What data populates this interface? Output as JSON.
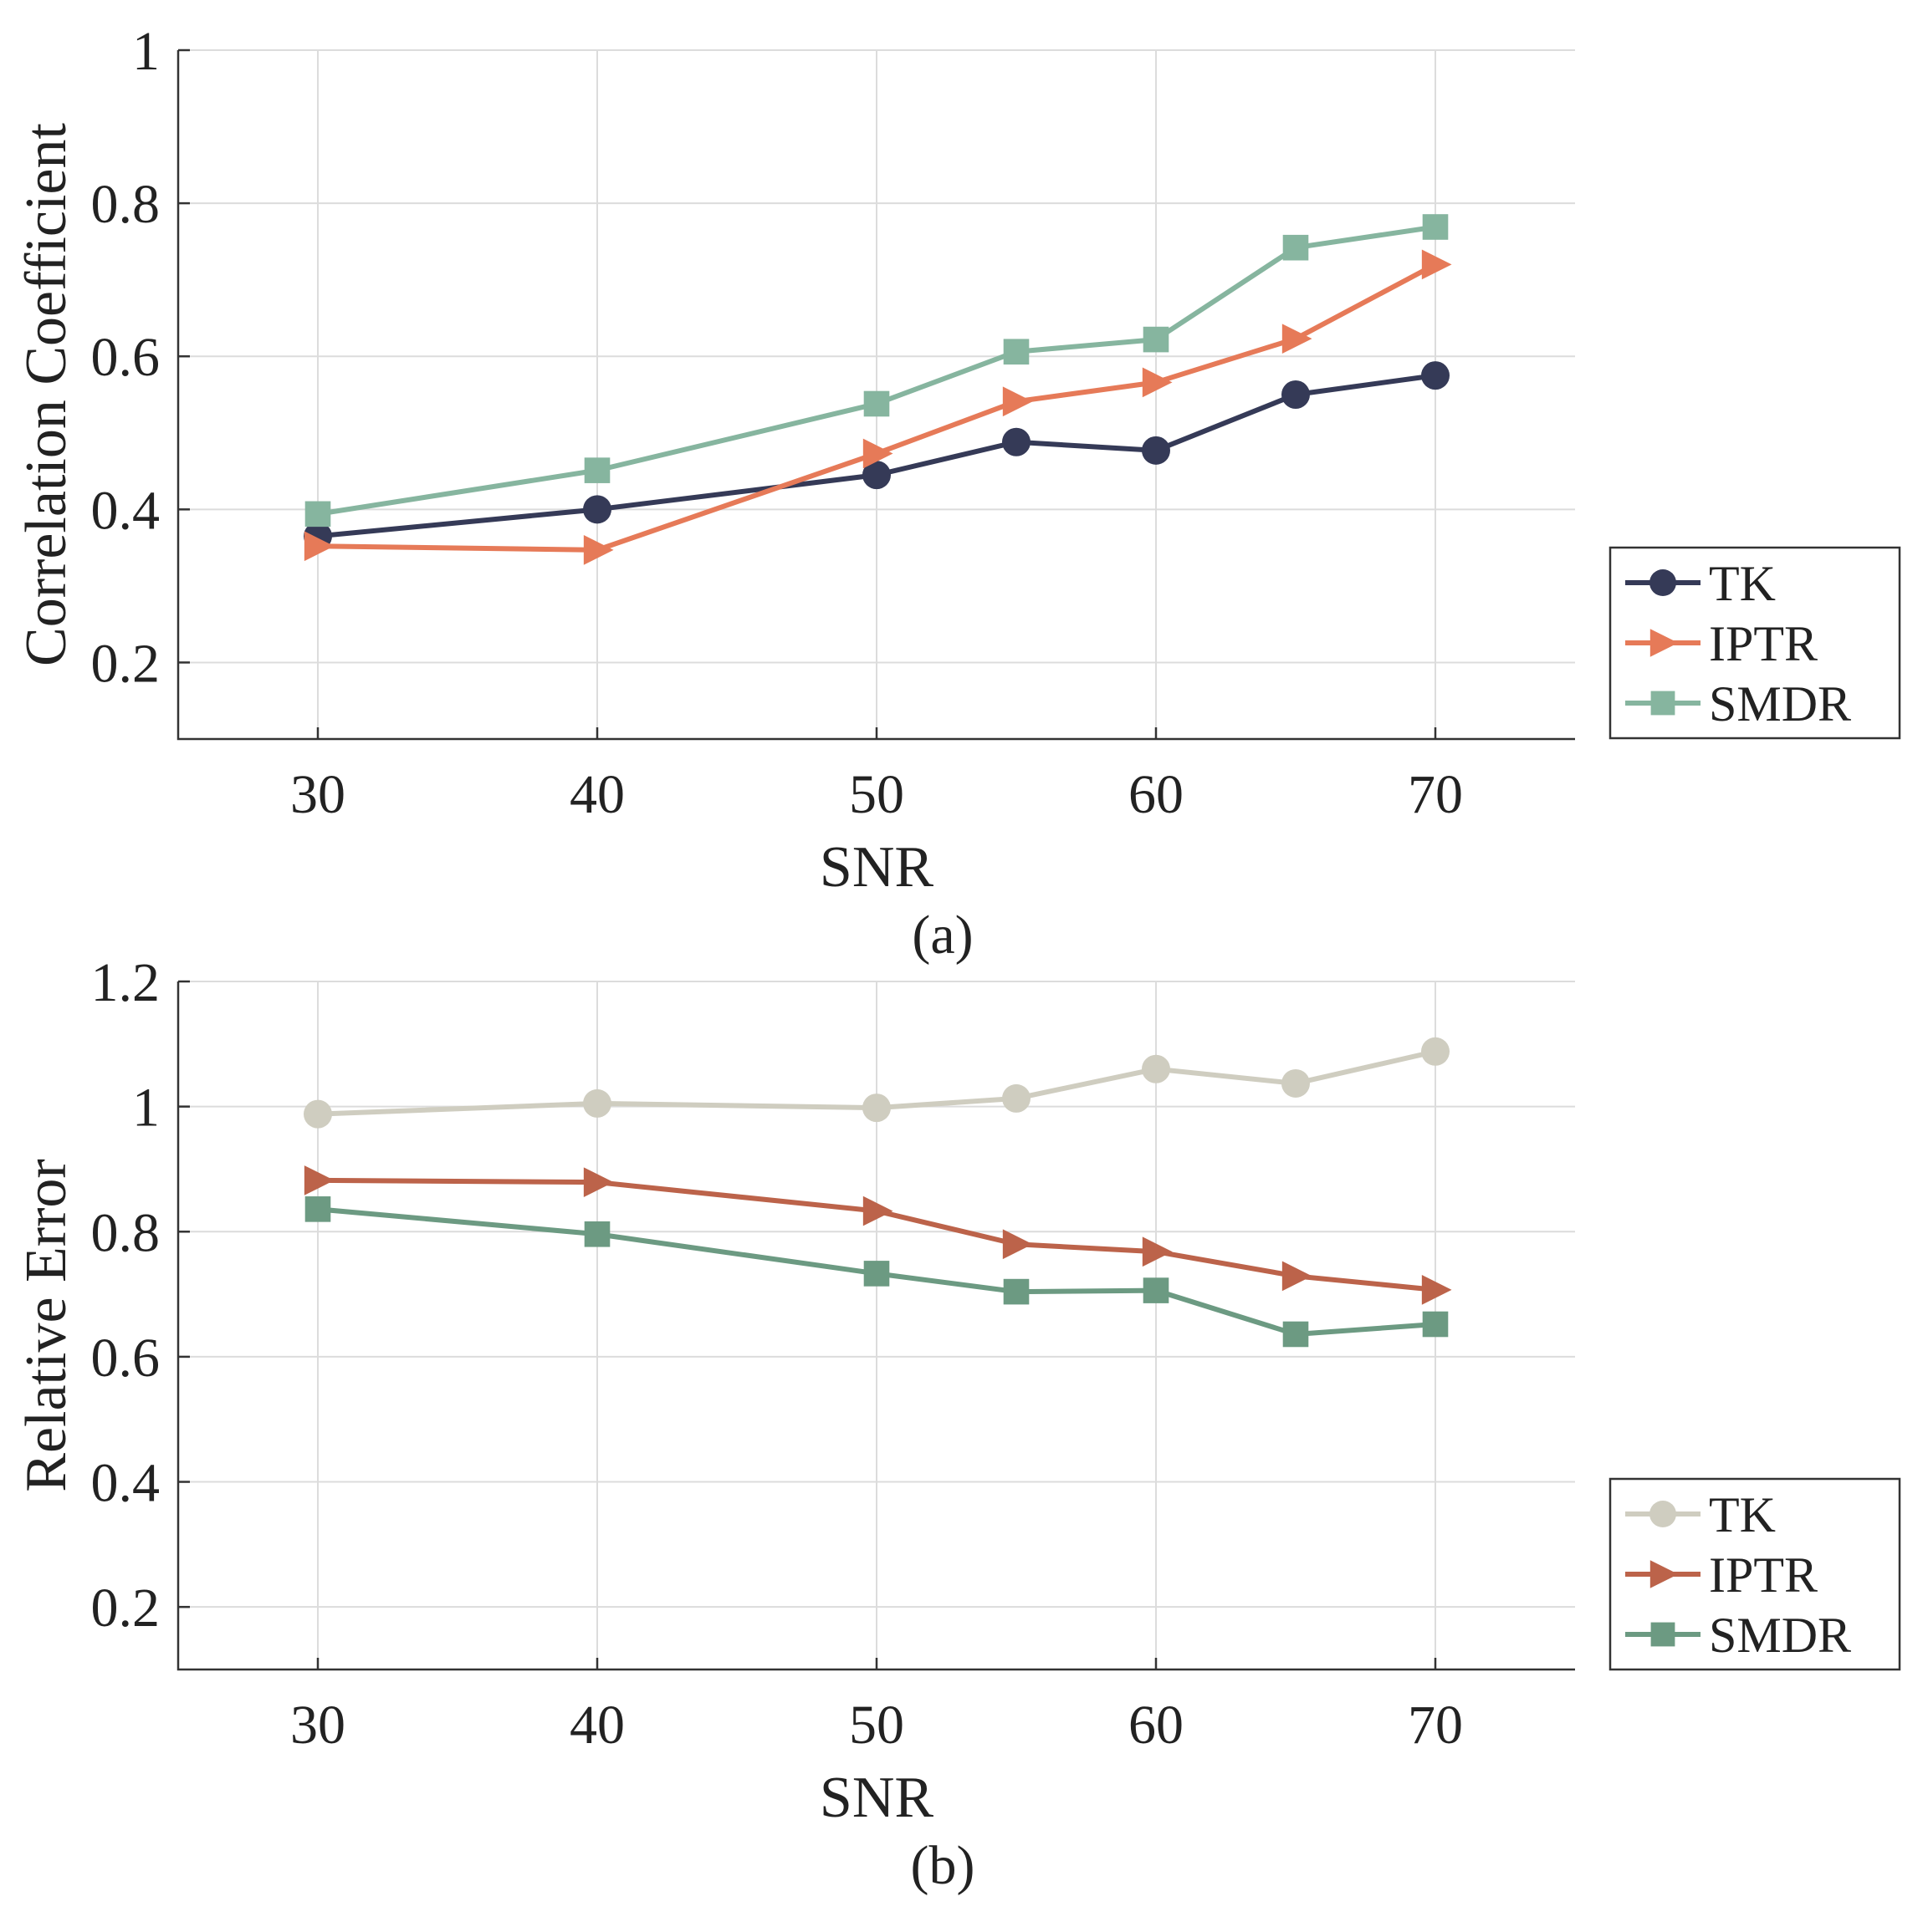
{
  "chart_data": [
    {
      "type": "line",
      "caption": "(a)",
      "xlabel": "SNR",
      "ylabel": "Correlation Coefficient",
      "x": [
        30,
        40,
        50,
        55,
        60,
        65,
        70
      ],
      "xlim": [
        25,
        75
      ],
      "ylim": [
        0.1,
        1.0
      ],
      "xticks": [
        30,
        40,
        50,
        60,
        70
      ],
      "yticks": [
        0.2,
        0.4,
        0.6,
        0.8,
        1
      ],
      "ytick_labels": [
        "0.2",
        "0.4",
        "0.6",
        "0.8",
        "1"
      ],
      "grid": true,
      "legend_position": "outside-right-bottom",
      "series": [
        {
          "name": "TK",
          "marker": "circle",
          "color": "#353a57",
          "values": [
            0.365,
            0.4,
            0.445,
            0.488,
            0.477,
            0.55,
            0.575
          ]
        },
        {
          "name": "IPTR",
          "marker": "triangle-right",
          "color": "#e67a58",
          "values": [
            0.352,
            0.347,
            0.473,
            0.541,
            0.566,
            0.623,
            0.72
          ]
        },
        {
          "name": "SMDR",
          "marker": "square",
          "color": "#86b59f",
          "values": [
            0.394,
            0.451,
            0.538,
            0.606,
            0.622,
            0.742,
            0.769
          ]
        }
      ]
    },
    {
      "type": "line",
      "caption": "(b)",
      "xlabel": "SNR",
      "ylabel": "Relative Error",
      "x": [
        30,
        40,
        50,
        55,
        60,
        65,
        70
      ],
      "xlim": [
        25,
        75
      ],
      "ylim": [
        0.1,
        1.2
      ],
      "xticks": [
        30,
        40,
        50,
        60,
        70
      ],
      "yticks": [
        0.2,
        0.4,
        0.6,
        0.8,
        1,
        1.2
      ],
      "ytick_labels": [
        "0.2",
        "0.4",
        "0.6",
        "0.8",
        "1",
        "1.2"
      ],
      "grid": true,
      "legend_position": "outside-right-bottom",
      "series": [
        {
          "name": "TK",
          "marker": "circle",
          "color": "#cfcdc0",
          "values": [
            0.988,
            1.005,
            0.998,
            1.013,
            1.06,
            1.037,
            1.088
          ]
        },
        {
          "name": "IPTR",
          "marker": "triangle-right",
          "color": "#bc634a",
          "values": [
            0.882,
            0.879,
            0.833,
            0.78,
            0.768,
            0.729,
            0.707
          ]
        },
        {
          "name": "SMDR",
          "marker": "square",
          "color": "#6c9a82",
          "values": [
            0.836,
            0.796,
            0.733,
            0.704,
            0.706,
            0.636,
            0.652
          ]
        }
      ]
    }
  ]
}
